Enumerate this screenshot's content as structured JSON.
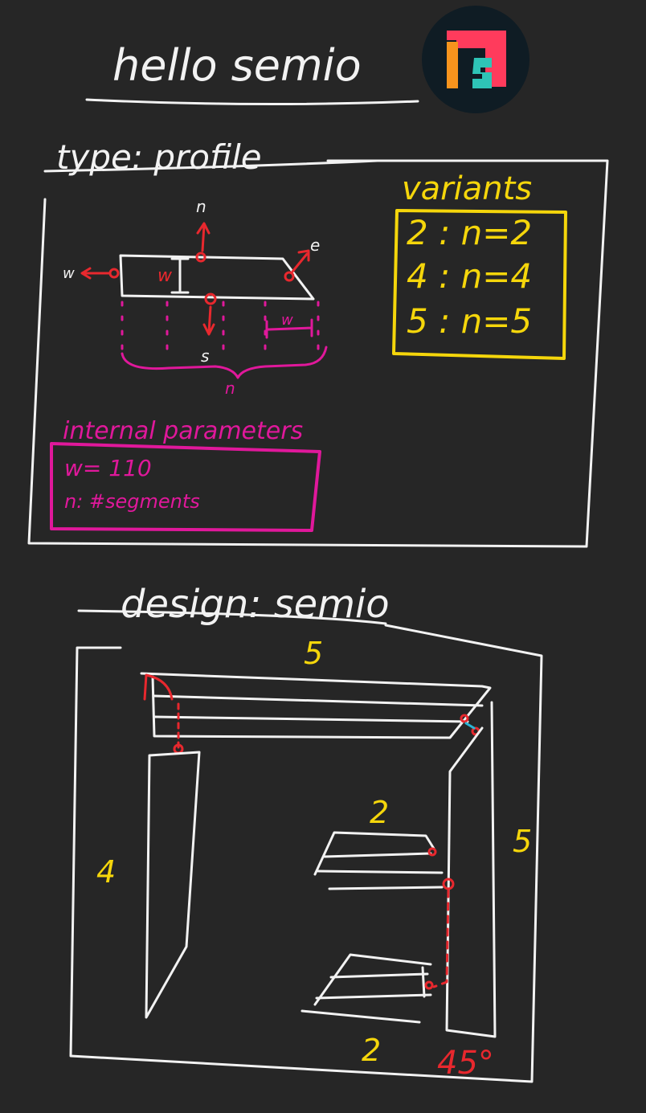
{
  "title": "hello semio",
  "logo": {
    "name": "semio-logo",
    "colors": [
      "#ff3b5c",
      "#f7941d",
      "#2ec4b6"
    ],
    "background": "#0f1c24"
  },
  "type_section": {
    "heading": "type: profile",
    "diagram_labels": {
      "north": "n",
      "south": "s",
      "east": "e",
      "west": "w",
      "width_mark": "w",
      "segment_width": "w",
      "segment_count": "n"
    },
    "variants": {
      "heading": "variants",
      "items": [
        "2 : n=2",
        "4 : n=4",
        "5 : n=5"
      ]
    },
    "internal_parameters": {
      "heading": "internal parameters",
      "items": [
        "w= 110",
        "n: #segments"
      ]
    }
  },
  "design_section": {
    "heading": "design: semio",
    "labels": {
      "top": "5",
      "left": "4",
      "right": "5",
      "middle_upper": "2",
      "bottom": "2",
      "angle": "45°"
    }
  },
  "colors": {
    "background": "#262626",
    "ink": "#f2f2f2",
    "red": "#e8282e",
    "yellow": "#f5d60b",
    "magenta": "#e0189b",
    "cyan": "#29b6d6"
  }
}
